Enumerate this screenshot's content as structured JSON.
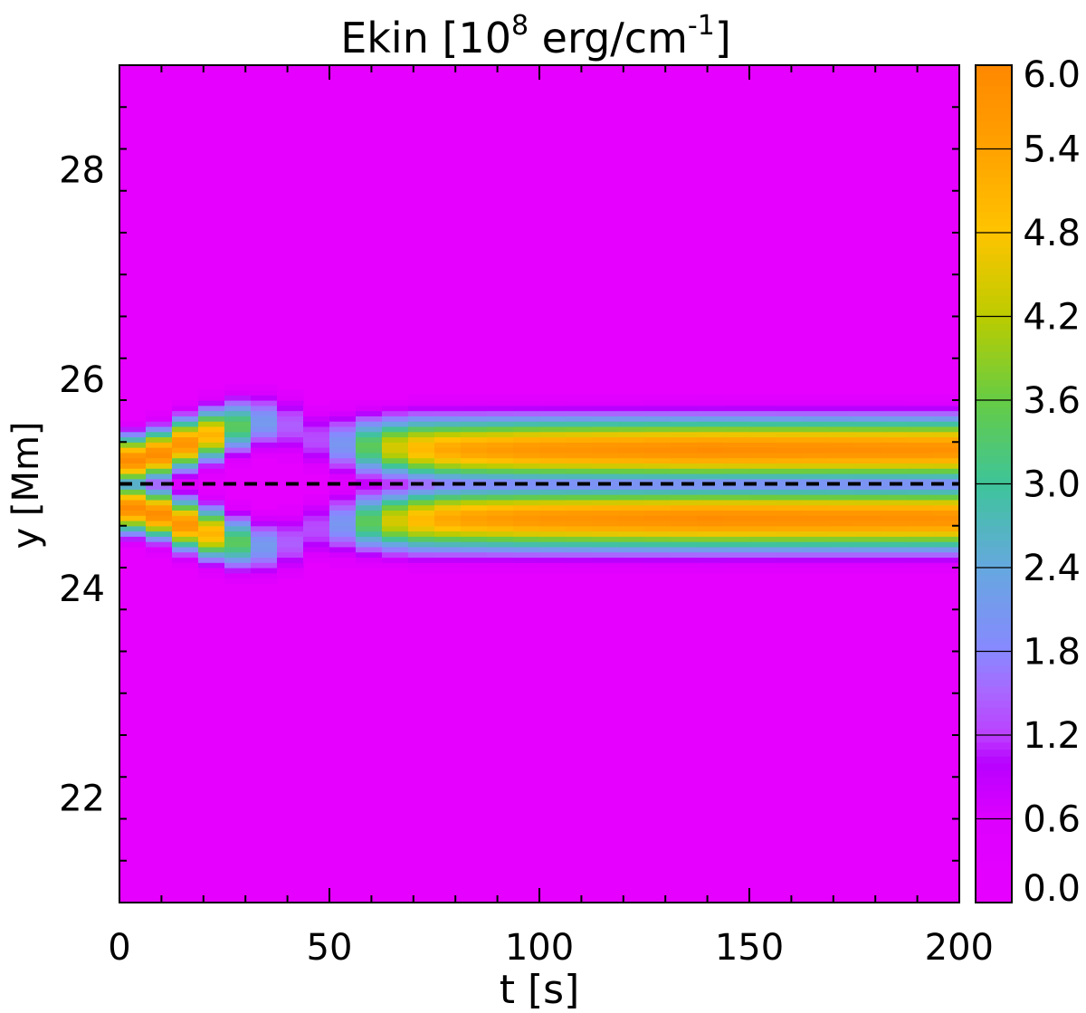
{
  "chart_data": {
    "type": "heatmap",
    "title": {
      "base": "Ekin [10",
      "exp": "8",
      "mid": " erg/cm",
      "exp2": "-1",
      "tail": "]"
    },
    "xlabel": "t [s]",
    "ylabel": "y [Mm]",
    "xlim": [
      0,
      200
    ],
    "ylim": [
      21,
      29
    ],
    "xticks": [
      0,
      50,
      100,
      150,
      200
    ],
    "xtick_labels": [
      "0",
      "50",
      "100",
      "150",
      "200"
    ],
    "yticks": [
      22,
      24,
      26,
      28
    ],
    "ytick_labels": [
      "22",
      "24",
      "26",
      "28"
    ],
    "colorbar": {
      "range": [
        0,
        6
      ],
      "tick_values": [
        0,
        0.6,
        1.2,
        1.8,
        2.4,
        3.0,
        3.6,
        4.2,
        4.8,
        5.4,
        6.0
      ],
      "tick_labels": [
        "0.0",
        "0.6",
        "1.2",
        "1.8",
        "2.4",
        "3.0",
        "3.6",
        "4.2",
        "4.8",
        "5.4",
        "6.0"
      ],
      "colormap_stops": [
        {
          "v": 0.0,
          "color": "#e600ff"
        },
        {
          "v": 0.6,
          "color": "#dd00ff"
        },
        {
          "v": 1.0,
          "color": "#b800ff"
        },
        {
          "v": 1.2,
          "color": "#bb40ff"
        },
        {
          "v": 1.5,
          "color": "#aa66ff"
        },
        {
          "v": 1.8,
          "color": "#8888ff"
        },
        {
          "v": 2.4,
          "color": "#66a8e0"
        },
        {
          "v": 3.0,
          "color": "#3ec49a"
        },
        {
          "v": 3.6,
          "color": "#66cc44"
        },
        {
          "v": 4.2,
          "color": "#bbcc00"
        },
        {
          "v": 4.8,
          "color": "#ffc400"
        },
        {
          "v": 5.4,
          "color": "#ffa200"
        },
        {
          "v": 6.0,
          "color": "#ff8800"
        }
      ]
    },
    "reference_line": {
      "y": 25.0,
      "style": "dashed",
      "color": "#000000"
    },
    "background_value": 0.1,
    "field": {
      "time_step": 6.25,
      "y_step": 0.1,
      "y_range": [
        21,
        29
      ],
      "upper_band": [
        {
          "t": 6,
          "yc": 25.23,
          "peak": 5.9,
          "width": 0.16
        },
        {
          "t": 12,
          "yc": 25.33,
          "peak": 5.9,
          "width": 0.16
        },
        {
          "t": 18,
          "yc": 25.42,
          "peak": 5.6,
          "width": 0.17
        },
        {
          "t": 24,
          "yc": 25.5,
          "peak": 4.8,
          "width": 0.17
        },
        {
          "t": 30,
          "yc": 25.58,
          "peak": 2.8,
          "width": 0.18
        },
        {
          "t": 36,
          "yc": 25.6,
          "peak": 1.9,
          "width": 0.18
        },
        {
          "t": 42,
          "yc": 25.55,
          "peak": 1.3,
          "width": 0.2
        },
        {
          "t": 48,
          "yc": 25.4,
          "peak": 1.3,
          "width": 0.2
        },
        {
          "t": 54,
          "yc": 25.38,
          "peak": 2.2,
          "width": 0.2
        },
        {
          "t": 60,
          "yc": 25.36,
          "peak": 3.6,
          "width": 0.2
        },
        {
          "t": 66,
          "yc": 25.35,
          "peak": 4.5,
          "width": 0.2
        },
        {
          "t": 72,
          "yc": 25.34,
          "peak": 5.0,
          "width": 0.21
        },
        {
          "t": 80,
          "yc": 25.33,
          "peak": 5.4,
          "width": 0.21
        },
        {
          "t": 100,
          "yc": 25.33,
          "peak": 5.7,
          "width": 0.21
        },
        {
          "t": 140,
          "yc": 25.33,
          "peak": 5.9,
          "width": 0.21
        },
        {
          "t": 200,
          "yc": 25.33,
          "peak": 5.8,
          "width": 0.21
        }
      ],
      "lower_band": [
        {
          "t": 6,
          "yc": 24.77,
          "peak": 5.9,
          "width": 0.16
        },
        {
          "t": 12,
          "yc": 24.67,
          "peak": 5.9,
          "width": 0.16
        },
        {
          "t": 18,
          "yc": 24.58,
          "peak": 5.6,
          "width": 0.17
        },
        {
          "t": 24,
          "yc": 24.5,
          "peak": 4.8,
          "width": 0.17
        },
        {
          "t": 30,
          "yc": 24.42,
          "peak": 2.8,
          "width": 0.18
        },
        {
          "t": 36,
          "yc": 24.4,
          "peak": 1.9,
          "width": 0.18
        },
        {
          "t": 42,
          "yc": 24.45,
          "peak": 1.3,
          "width": 0.2
        },
        {
          "t": 48,
          "yc": 24.6,
          "peak": 1.3,
          "width": 0.2
        },
        {
          "t": 54,
          "yc": 24.62,
          "peak": 2.2,
          "width": 0.2
        },
        {
          "t": 60,
          "yc": 24.64,
          "peak": 3.6,
          "width": 0.2
        },
        {
          "t": 66,
          "yc": 24.65,
          "peak": 4.5,
          "width": 0.2
        },
        {
          "t": 72,
          "yc": 24.66,
          "peak": 5.0,
          "width": 0.21
        },
        {
          "t": 80,
          "yc": 24.67,
          "peak": 5.4,
          "width": 0.21
        },
        {
          "t": 100,
          "yc": 24.67,
          "peak": 5.7,
          "width": 0.21
        },
        {
          "t": 140,
          "yc": 24.67,
          "peak": 5.9,
          "width": 0.21
        },
        {
          "t": 200,
          "yc": 24.67,
          "peak": 5.8,
          "width": 0.21
        }
      ]
    }
  }
}
